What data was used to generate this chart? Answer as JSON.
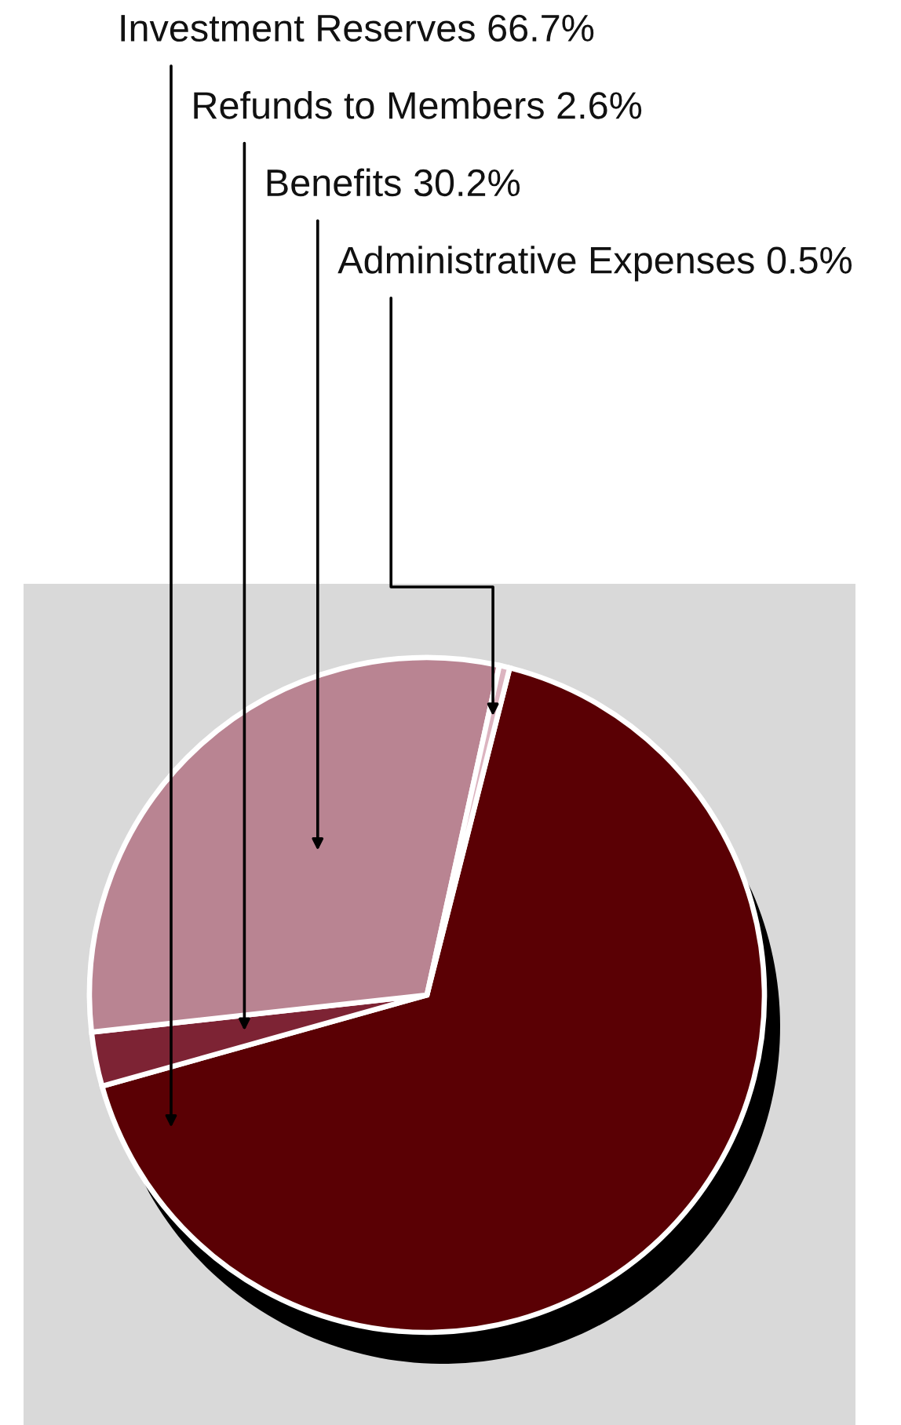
{
  "chart_data": {
    "type": "pie",
    "categories": [
      "Investment Reserves",
      "Refunds to Members",
      "Benefits",
      "Administrative Expenses"
    ],
    "values": [
      66.7,
      2.6,
      30.2,
      0.5
    ],
    "colors": [
      "#5a0004",
      "#7d2334",
      "#b98492",
      "#dcb4c0"
    ],
    "value_labels": [
      "66.7%",
      "2.6%",
      "30.2%",
      "0.5%"
    ]
  }
}
